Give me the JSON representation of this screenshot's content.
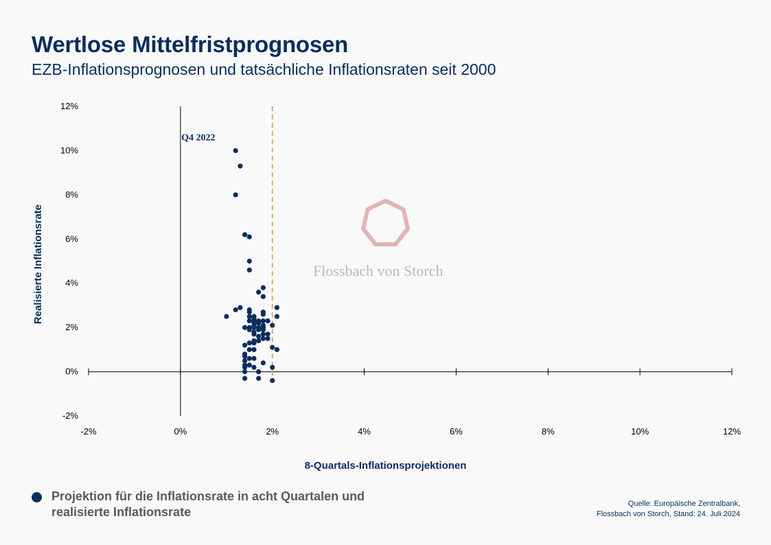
{
  "title": "Wertlose Mittelfristprognosen",
  "subtitle": "EZB-Inflationsprognosen und tatsächliche Inflationsraten seit 2000",
  "legend": {
    "label": "Projektion für die Inflationsrate in acht Quartalen und realisierte Inflationsrate"
  },
  "source": {
    "line1": "Quelle: Europäische Zentralbank,",
    "line2": "Flossbach von Storch, Stand: 24. Juli 2024"
  },
  "watermark": {
    "text": "Flossbach von Storch"
  },
  "colors": {
    "dots": "#0a2d5e",
    "reference_line": "#d9a96c",
    "axis": "#000000",
    "logo": "#e3b3b6"
  },
  "chart_data": {
    "type": "scatter",
    "xlabel": "8-Quartals-Inflationsprojektionen",
    "ylabel": "Realisierte Inflationsrate",
    "xlim": [
      -2,
      12
    ],
    "ylim": [
      -2,
      12
    ],
    "x_ticks": [
      -2,
      0,
      2,
      4,
      6,
      8,
      10,
      12
    ],
    "y_ticks": [
      -2,
      0,
      2,
      4,
      6,
      8,
      10,
      12
    ],
    "x_tick_labels": [
      "-2%",
      "0%",
      "2%",
      "4%",
      "6%",
      "8%",
      "10%",
      "12%"
    ],
    "y_tick_labels": [
      "-2%",
      "0%",
      "2%",
      "4%",
      "6%",
      "8%",
      "10%",
      "12%"
    ],
    "reference_line_x": 2,
    "annotations": [
      {
        "text": "Q4 2022",
        "x": 1.2,
        "y": 10.0
      }
    ],
    "points": [
      [
        1.2,
        10.0
      ],
      [
        1.3,
        9.3
      ],
      [
        1.2,
        8.0
      ],
      [
        1.4,
        6.2
      ],
      [
        1.5,
        6.1
      ],
      [
        1.5,
        5.0
      ],
      [
        1.5,
        4.6
      ],
      [
        1.8,
        3.8
      ],
      [
        1.7,
        3.6
      ],
      [
        1.8,
        3.4
      ],
      [
        1.3,
        2.9
      ],
      [
        2.1,
        2.9
      ],
      [
        1.2,
        2.8
      ],
      [
        1.5,
        2.8
      ],
      [
        1.5,
        2.7
      ],
      [
        1.8,
        2.7
      ],
      [
        1.8,
        2.6
      ],
      [
        1.0,
        2.5
      ],
      [
        1.5,
        2.5
      ],
      [
        1.6,
        2.5
      ],
      [
        2.1,
        2.5
      ],
      [
        1.6,
        2.4
      ],
      [
        1.5,
        2.3
      ],
      [
        1.6,
        2.3
      ],
      [
        1.7,
        2.3
      ],
      [
        1.8,
        2.3
      ],
      [
        1.9,
        2.3
      ],
      [
        1.6,
        2.2
      ],
      [
        1.7,
        2.2
      ],
      [
        1.6,
        2.1
      ],
      [
        1.8,
        2.1
      ],
      [
        2.0,
        2.1
      ],
      [
        1.4,
        2.0
      ],
      [
        1.5,
        2.0
      ],
      [
        1.6,
        2.0
      ],
      [
        1.7,
        2.0
      ],
      [
        1.8,
        2.0
      ],
      [
        1.5,
        1.9
      ],
      [
        1.7,
        1.9
      ],
      [
        1.8,
        1.9
      ],
      [
        1.6,
        1.8
      ],
      [
        1.6,
        1.7
      ],
      [
        1.8,
        1.7
      ],
      [
        1.9,
        1.7
      ],
      [
        1.7,
        1.6
      ],
      [
        1.8,
        1.5
      ],
      [
        1.9,
        1.5
      ],
      [
        1.6,
        1.4
      ],
      [
        1.7,
        1.4
      ],
      [
        1.5,
        1.3
      ],
      [
        1.6,
        1.3
      ],
      [
        1.4,
        1.2
      ],
      [
        2.0,
        1.1
      ],
      [
        1.5,
        1.0
      ],
      [
        1.6,
        1.0
      ],
      [
        2.1,
        1.0
      ],
      [
        1.4,
        0.8
      ],
      [
        1.4,
        0.7
      ],
      [
        1.5,
        0.6
      ],
      [
        1.6,
        0.6
      ],
      [
        1.4,
        0.5
      ],
      [
        1.8,
        0.4
      ],
      [
        1.4,
        0.3
      ],
      [
        1.5,
        0.3
      ],
      [
        1.4,
        0.2
      ],
      [
        1.6,
        0.2
      ],
      [
        2.0,
        0.2
      ],
      [
        1.4,
        0.0
      ],
      [
        1.7,
        0.0
      ],
      [
        1.4,
        -0.3
      ],
      [
        1.7,
        -0.3
      ],
      [
        2.0,
        -0.4
      ]
    ]
  }
}
